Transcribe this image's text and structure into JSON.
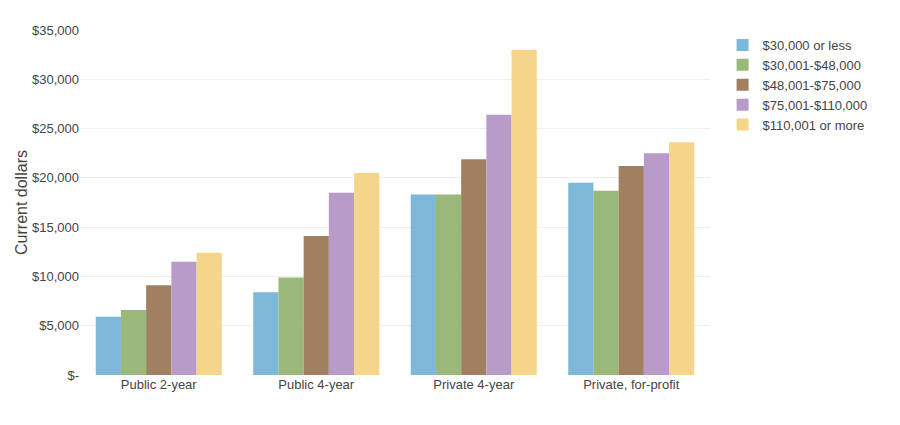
{
  "chart_data": {
    "type": "bar",
    "categories": [
      "Public 2-year",
      "Public 4-year",
      "Private 4-year",
      "Private, for-profit"
    ],
    "series": [
      {
        "name": "$30,000 or less",
        "color": "#7db8d8",
        "values": [
          5900,
          8400,
          18300,
          19500
        ]
      },
      {
        "name": "$30,001-$48,000",
        "color": "#9ab87a",
        "values": [
          6600,
          9900,
          18300,
          18700
        ]
      },
      {
        "name": "$48,001-$75,000",
        "color": "#a08060",
        "values": [
          9100,
          14100,
          21900,
          21200
        ]
      },
      {
        "name": "$75,001-$110,000",
        "color": "#b89bc8",
        "values": [
          11500,
          18500,
          26400,
          22500
        ]
      },
      {
        "name": "$110,001 or more",
        "color": "#f5d58a",
        "values": [
          12400,
          20500,
          33000,
          23600
        ]
      }
    ],
    "ylabel": "Current dollars",
    "ylim": [
      0,
      35000
    ],
    "yticks": [
      {
        "value": 0,
        "label": "$-"
      },
      {
        "value": 5000,
        "label": "$5,000"
      },
      {
        "value": 10000,
        "label": "$10,000"
      },
      {
        "value": 15000,
        "label": "$15,000"
      },
      {
        "value": 20000,
        "label": "$20,000"
      },
      {
        "value": 25000,
        "label": "$25,000"
      },
      {
        "value": 30000,
        "label": "$30,000"
      },
      {
        "value": 35000,
        "label": "$35,000"
      }
    ],
    "grid": true,
    "legend": "right"
  }
}
